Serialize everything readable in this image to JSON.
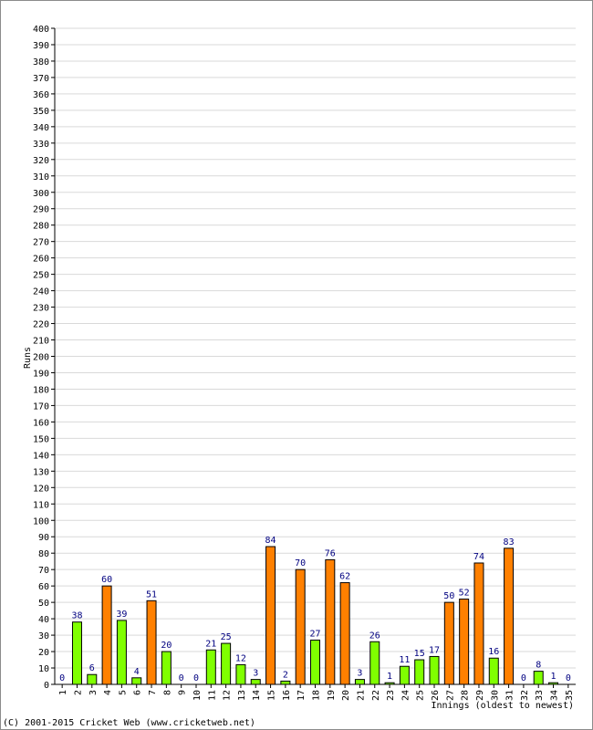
{
  "chart_data": {
    "type": "bar",
    "xlabel": "Innings (oldest to newest)",
    "ylabel": "Runs",
    "ylim": [
      0,
      400
    ],
    "ytick_step": 10,
    "grid": true,
    "categories": [
      "1",
      "2",
      "3",
      "4",
      "5",
      "6",
      "7",
      "8",
      "9",
      "10",
      "11",
      "12",
      "13",
      "14",
      "15",
      "16",
      "17",
      "18",
      "19",
      "20",
      "21",
      "22",
      "23",
      "24",
      "25",
      "26",
      "27",
      "28",
      "29",
      "30",
      "31",
      "32",
      "33",
      "34",
      "35"
    ],
    "values": [
      0,
      38,
      6,
      60,
      39,
      4,
      51,
      20,
      0,
      0,
      21,
      25,
      12,
      3,
      84,
      2,
      70,
      27,
      76,
      62,
      3,
      26,
      1,
      11,
      15,
      17,
      50,
      52,
      74,
      16,
      83,
      0,
      8,
      1,
      0
    ],
    "colors": {
      "low": "#80ff00",
      "high": "#ff8000",
      "label": "#000080",
      "grid": "#d9d9d9",
      "axis": "#000000"
    }
  },
  "footer": {
    "copyright": "(C) 2001-2015 Cricket Web (www.cricketweb.net)"
  }
}
